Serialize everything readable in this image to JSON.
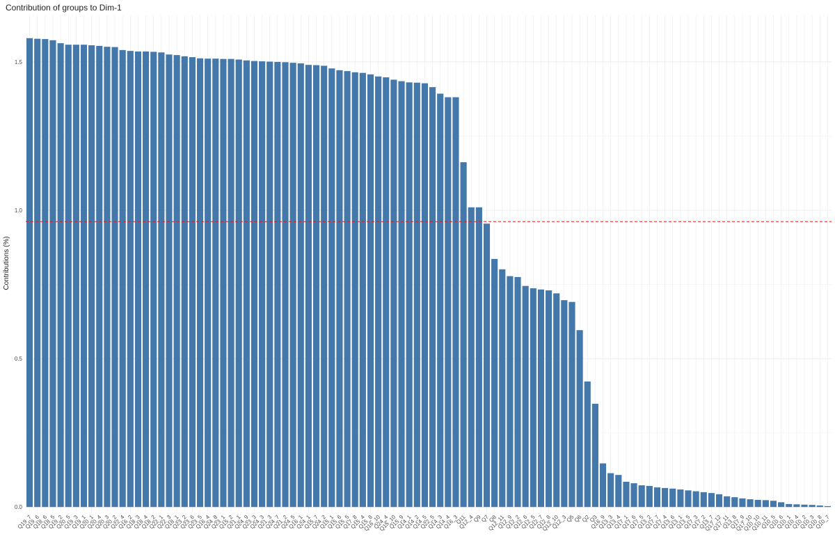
{
  "chart_data": {
    "type": "bar",
    "title": "Contribution of groups to Dim-1",
    "y_label": "Contributions (%)",
    "color": "#4477aa",
    "grid": true,
    "hline": 0.962,
    "hline_color": "#e41a1c",
    "ylim": [
      -0.016,
      1.657
    ],
    "yticks": [
      {
        "value": 0,
        "label": "0.0"
      },
      {
        "value": 0.5,
        "label": "0.5"
      },
      {
        "value": 1,
        "label": "1.0"
      },
      {
        "value": 1.5,
        "label": "1.5"
      }
    ],
    "categories": [
      "Q19_7",
      "Q19_6",
      "Q18_6",
      "Q18_5",
      "Q19_2",
      "Q20_5",
      "Q19_3",
      "Q19_1",
      "Q20_1",
      "Q20_4",
      "Q20_3",
      "Q20_2",
      "Q22_4",
      "Q16_2",
      "Q18_3",
      "Q18_4",
      "Q18_2",
      "Q22_1",
      "Q22_3",
      "Q18_1",
      "Q23_2",
      "Q23_6",
      "Q23_5",
      "Q16_4",
      "Q24_8",
      "Q23_1",
      "Q15_2",
      "Q21_1",
      "Q24_9",
      "Q23_3",
      "Q24_3",
      "Q21_3",
      "Q24_7",
      "Q21_2",
      "Q24_5",
      "Q16_1",
      "Q24_1",
      "Q15_7",
      "Q24_2",
      "Q15_1",
      "Q15_6",
      "Q15_5",
      "Q17_8",
      "Q15_4",
      "Q15_8",
      "Q16_10",
      "Q24_4",
      "Q15_10",
      "Q15_9",
      "Q14_1",
      "Q14_2",
      "Q14_5",
      "Q22_5",
      "Q14_3",
      "Q14_4",
      "Q16_3",
      "Q11",
      "Q12_4",
      "Q9",
      "Q7",
      "Q8",
      "Q12_11",
      "Q12_9",
      "Q12_2",
      "Q12_6",
      "Q12_5",
      "Q12_7",
      "Q12_8",
      "Q12_10",
      "Q12_3",
      "Q5",
      "Q6",
      "Q2",
      "Q3",
      "Q16_9",
      "Q13_3",
      "Q13_4",
      "Q17_1",
      "Q17_6",
      "Q17_5",
      "Q13_2",
      "Q17_7",
      "Q17_4",
      "Q13_6",
      "Q13_1",
      "Q13_5",
      "Q17_3",
      "Q17_2",
      "Q13_7",
      "Q17_12",
      "Q17_11",
      "Q13_8",
      "Q17_9",
      "Q17_10",
      "Q10_10",
      "Q10_11",
      "Q10_5",
      "Q10_6",
      "Q10_1",
      "Q10_4",
      "Q10_2",
      "Q10_3",
      "Q10_8",
      "Q10_7"
    ],
    "values": [
      1.58,
      1.578,
      1.577,
      1.573,
      1.563,
      1.558,
      1.558,
      1.558,
      1.556,
      1.554,
      1.551,
      1.55,
      1.54,
      1.537,
      1.535,
      1.535,
      1.534,
      1.532,
      1.525,
      1.523,
      1.519,
      1.516,
      1.512,
      1.511,
      1.511,
      1.51,
      1.51,
      1.508,
      1.505,
      1.503,
      1.502,
      1.501,
      1.5,
      1.499,
      1.497,
      1.495,
      1.49,
      1.489,
      1.487,
      1.478,
      1.472,
      1.469,
      1.465,
      1.463,
      1.458,
      1.451,
      1.448,
      1.44,
      1.435,
      1.431,
      1.43,
      1.428,
      1.415,
      1.393,
      1.381,
      1.381,
      1.162,
      1.01,
      1.01,
      0.955,
      0.836,
      0.801,
      0.778,
      0.775,
      0.745,
      0.737,
      0.733,
      0.73,
      0.72,
      0.697,
      0.691,
      0.596,
      0.423,
      0.348,
      0.147,
      0.114,
      0.108,
      0.085,
      0.08,
      0.073,
      0.071,
      0.066,
      0.064,
      0.062,
      0.059,
      0.056,
      0.053,
      0.05,
      0.047,
      0.043,
      0.036,
      0.033,
      0.029,
      0.026,
      0.024,
      0.023,
      0.021,
      0.016,
      0.01,
      0.009,
      0.008,
      0.007,
      0.005,
      0.003
    ]
  }
}
